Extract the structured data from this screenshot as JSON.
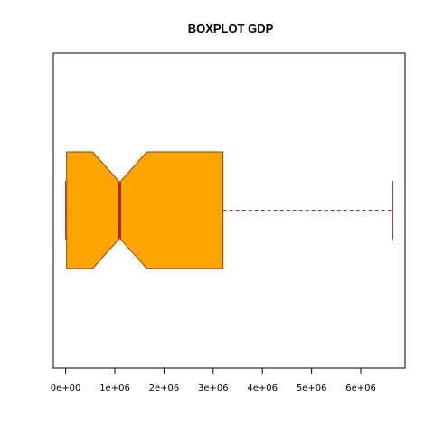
{
  "chart_data": {
    "type": "boxplot",
    "title": "BOXPLOT GDP",
    "xlabel": "",
    "ylabel": "",
    "orientation": "horizontal",
    "notch": true,
    "xlim": [
      -250000,
      6900000
    ],
    "ticks": [
      0,
      1000000,
      2000000,
      3000000,
      4000000,
      5000000,
      6000000
    ],
    "tick_labels": [
      "0e+00",
      "1e+06",
      "2e+06",
      "3e+06",
      "4e+06",
      "5e+06",
      "6e+06"
    ],
    "stats": {
      "whisker_low": 0,
      "q1": 20000,
      "median": 1100000,
      "q3": 3200000,
      "whisker_high": 6650000,
      "notch_low": 550000,
      "notch_high": 1650000
    },
    "outliers": [],
    "colors": {
      "box_fill": "#FFA500",
      "box_border": "#8B4513",
      "median": "#B22222",
      "whisker": "#B22222"
    }
  }
}
